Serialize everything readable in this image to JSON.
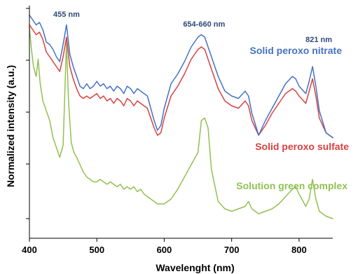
{
  "chart_data": {
    "type": "line",
    "xlabel": "Wavelenght (nm)",
    "ylabel": "Normalized intensity (a.u.)",
    "xlim": [
      400,
      850
    ],
    "xticks": [
      "400",
      "500",
      "600",
      "700",
      "800"
    ],
    "y_tick_labels_shown": false,
    "grid": false,
    "annotations": [
      {
        "text": "455 nm",
        "x": 455
      },
      {
        "text": "654-660 nm",
        "x": 657
      },
      {
        "text": "821 nm",
        "x": 821
      }
    ],
    "series": [
      {
        "name": "Solid peroxo nitrate",
        "color": "#4472c4",
        "x": [
          400,
          405,
          410,
          415,
          420,
          425,
          430,
          435,
          440,
          445,
          450,
          455,
          460,
          465,
          470,
          475,
          480,
          485,
          490,
          495,
          500,
          505,
          510,
          515,
          520,
          525,
          530,
          535,
          540,
          545,
          550,
          555,
          560,
          565,
          570,
          575,
          580,
          585,
          590,
          595,
          600,
          610,
          620,
          630,
          640,
          650,
          655,
          660,
          665,
          670,
          680,
          690,
          700,
          710,
          720,
          725,
          730,
          740,
          750,
          760,
          770,
          780,
          790,
          795,
          800,
          810,
          815,
          820,
          825,
          830,
          840,
          850
        ],
        "values": [
          0.83,
          0.81,
          0.79,
          0.8,
          0.77,
          0.72,
          0.71,
          0.69,
          0.66,
          0.64,
          0.71,
          0.79,
          0.67,
          0.62,
          0.58,
          0.54,
          0.53,
          0.55,
          0.53,
          0.54,
          0.56,
          0.54,
          0.55,
          0.53,
          0.54,
          0.52,
          0.54,
          0.53,
          0.51,
          0.54,
          0.53,
          0.51,
          0.53,
          0.52,
          0.51,
          0.5,
          0.45,
          0.4,
          0.36,
          0.38,
          0.45,
          0.55,
          0.59,
          0.64,
          0.7,
          0.74,
          0.75,
          0.74,
          0.7,
          0.66,
          0.58,
          0.52,
          0.5,
          0.49,
          0.52,
          0.5,
          0.43,
          0.34,
          0.4,
          0.45,
          0.5,
          0.55,
          0.58,
          0.57,
          0.54,
          0.51,
          0.56,
          0.62,
          0.54,
          0.44,
          0.35,
          0.33
        ]
      },
      {
        "name": "Solid peroxo sulfate",
        "color": "#d94040",
        "x": [
          400,
          405,
          410,
          415,
          420,
          425,
          430,
          435,
          440,
          445,
          450,
          455,
          460,
          465,
          470,
          475,
          480,
          485,
          490,
          495,
          500,
          505,
          510,
          515,
          520,
          525,
          530,
          535,
          540,
          545,
          550,
          555,
          560,
          565,
          570,
          575,
          580,
          585,
          590,
          595,
          600,
          610,
          620,
          630,
          640,
          650,
          655,
          660,
          665,
          670,
          680,
          690,
          700,
          710,
          720,
          725,
          730,
          740,
          750,
          760,
          770,
          780,
          790,
          795,
          800,
          810,
          815,
          820,
          825,
          830,
          840,
          850
        ],
        "values": [
          0.79,
          0.77,
          0.75,
          0.76,
          0.73,
          0.68,
          0.66,
          0.64,
          0.62,
          0.6,
          0.66,
          0.74,
          0.62,
          0.57,
          0.53,
          0.5,
          0.49,
          0.5,
          0.49,
          0.5,
          0.51,
          0.49,
          0.5,
          0.48,
          0.49,
          0.47,
          0.49,
          0.48,
          0.46,
          0.49,
          0.48,
          0.46,
          0.48,
          0.47,
          0.46,
          0.45,
          0.41,
          0.37,
          0.34,
          0.35,
          0.41,
          0.5,
          0.54,
          0.59,
          0.65,
          0.69,
          0.7,
          0.69,
          0.65,
          0.61,
          0.53,
          0.48,
          0.46,
          0.45,
          0.48,
          0.46,
          0.4,
          0.34,
          0.38,
          0.43,
          0.47,
          0.51,
          0.53,
          0.52,
          0.5,
          0.47,
          0.52,
          0.57,
          0.5,
          0.41,
          0.35,
          0.33
        ]
      },
      {
        "name": "Solution green complex",
        "color": "#92c050",
        "x": [
          400,
          403,
          406,
          410,
          413,
          416,
          420,
          425,
          430,
          435,
          440,
          445,
          450,
          455,
          458,
          462,
          466,
          470,
          475,
          480,
          485,
          490,
          495,
          500,
          505,
          510,
          515,
          520,
          525,
          530,
          535,
          540,
          545,
          550,
          555,
          560,
          565,
          570,
          575,
          580,
          585,
          590,
          600,
          610,
          620,
          630,
          640,
          650,
          655,
          660,
          665,
          670,
          680,
          690,
          700,
          710,
          720,
          725,
          730,
          740,
          750,
          760,
          770,
          780,
          790,
          795,
          800,
          810,
          815,
          820,
          825,
          830,
          840,
          850
        ],
        "values": [
          0.78,
          0.69,
          0.62,
          0.58,
          0.65,
          0.55,
          0.48,
          0.44,
          0.4,
          0.33,
          0.29,
          0.25,
          0.3,
          0.72,
          0.48,
          0.31,
          0.27,
          0.25,
          0.22,
          0.19,
          0.17,
          0.16,
          0.15,
          0.15,
          0.16,
          0.15,
          0.14,
          0.15,
          0.14,
          0.13,
          0.14,
          0.12,
          0.13,
          0.12,
          0.13,
          0.11,
          0.12,
          0.1,
          0.09,
          0.08,
          0.07,
          0.06,
          0.06,
          0.08,
          0.12,
          0.17,
          0.22,
          0.27,
          0.4,
          0.41,
          0.37,
          0.2,
          0.07,
          0.04,
          0.03,
          0.04,
          0.05,
          0.07,
          0.04,
          0.02,
          0.03,
          0.04,
          0.06,
          0.09,
          0.12,
          0.13,
          0.1,
          0.05,
          0.08,
          0.16,
          0.08,
          0.03,
          0.01,
          0.0
        ]
      }
    ]
  }
}
